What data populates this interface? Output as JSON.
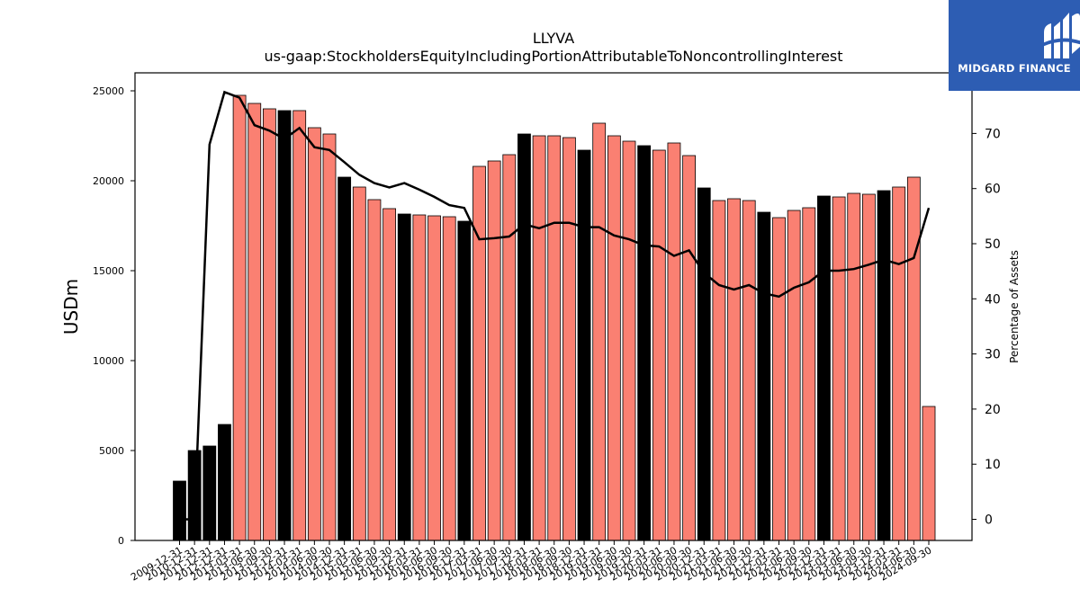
{
  "chart_data": {
    "type": "bar",
    "title": "LLYVA",
    "subtitle": "us-gaap:StockholdersEquityIncludingPortionAttributableToNoncontrollingInterest",
    "ylabel": "USDm",
    "y2label": "Percentage of Assets",
    "ylim": [
      0,
      25000
    ],
    "y2lim": [
      -4.2,
      86.6
    ],
    "yticks": [
      "0",
      "5000",
      "10000",
      "15000",
      "20000",
      "25000"
    ],
    "y2ticks": [
      "0",
      "10",
      "20",
      "30",
      "40",
      "50",
      "60",
      "70"
    ],
    "categories": [
      "2009-12-31",
      "2010-12-31",
      "2011-12-31",
      "2012-12-31",
      "2013-03-31",
      "2013-06-30",
      "2013-09-30",
      "2013-12-31",
      "2014-03-31",
      "2014-06-30",
      "2014-09-30",
      "2014-12-31",
      "2015-03-31",
      "2015-06-30",
      "2015-09-30",
      "2015-12-31",
      "2016-03-31",
      "2016-06-30",
      "2016-09-30",
      "2016-12-31",
      "2017-03-31",
      "2017-06-30",
      "2017-09-30",
      "2017-12-31",
      "2018-03-31",
      "2018-06-30",
      "2018-09-30",
      "2018-12-31",
      "2019-03-31",
      "2019-06-30",
      "2019-09-30",
      "2019-12-31",
      "2020-03-31",
      "2020-06-30",
      "2020-09-30",
      "2020-12-31",
      "2021-03-31",
      "2021-06-30",
      "2021-09-30",
      "2021-12-31",
      "2022-03-31",
      "2022-06-30",
      "2022-09-30",
      "2022-12-31",
      "2023-03-31",
      "2023-06-30",
      "2023-09-30",
      "2023-12-31",
      "2024-03-31",
      "2024-06-30",
      "2024-09-30"
    ],
    "series": [
      {
        "values": [
          3300,
          5000,
          5250,
          6450,
          24750,
          24300,
          24000,
          23900,
          23900,
          22950,
          22600,
          20200,
          19650,
          18950,
          18450,
          18150,
          18100,
          18050,
          18000,
          17750,
          20800,
          21100,
          21450,
          22600,
          22500,
          22500,
          22400,
          21700,
          23200,
          22500,
          22200,
          21950,
          21700,
          22100,
          21400,
          19600,
          18900,
          19000,
          18900,
          18250,
          17950,
          18350,
          18500,
          19150,
          19100,
          19300,
          19250,
          19450,
          19650,
          20200,
          7450
        ],
        "colors": [
          "#000000",
          "#000000",
          "#000000",
          "#000000",
          "#fa8072",
          "#fa8072",
          "#fa8072",
          "#000000",
          "#fa8072",
          "#fa8072",
          "#fa8072",
          "#000000",
          "#fa8072",
          "#fa8072",
          "#fa8072",
          "#000000",
          "#fa8072",
          "#fa8072",
          "#fa8072",
          "#000000",
          "#fa8072",
          "#fa8072",
          "#fa8072",
          "#000000",
          "#fa8072",
          "#fa8072",
          "#fa8072",
          "#000000",
          "#fa8072",
          "#fa8072",
          "#fa8072",
          "#000000",
          "#fa8072",
          "#fa8072",
          "#fa8072",
          "#000000",
          "#fa8072",
          "#fa8072",
          "#fa8072",
          "#000000",
          "#fa8072",
          "#fa8072",
          "#fa8072",
          "#000000",
          "#fa8072",
          "#fa8072",
          "#fa8072",
          "#000000",
          "#fa8072",
          "#fa8072",
          "#fa8072"
        ]
      },
      {
        "values": [
          0,
          0,
          68,
          77.5,
          76.5,
          71.5,
          70.5,
          69,
          71,
          67.5,
          67,
          64.8,
          62.5,
          61,
          60.2,
          61,
          59.8,
          58.5,
          57,
          56.5,
          50.8,
          51,
          51.3,
          53.5,
          52.8,
          53.8,
          53.8,
          53,
          53,
          51.5,
          50.8,
          49.7,
          49.5,
          47.8,
          48.8,
          44.7,
          42.5,
          41.7,
          42.5,
          41,
          40.4,
          42,
          43,
          45.1,
          45.1,
          45.4,
          46.2,
          47.1,
          46.3,
          47.4,
          56.5
        ],
        "color": "#000000",
        "axis": "right"
      }
    ],
    "grid": false,
    "legend": "none"
  },
  "logo": {
    "text": "MIDGARD FINANCE",
    "color": "#2d5db3"
  }
}
